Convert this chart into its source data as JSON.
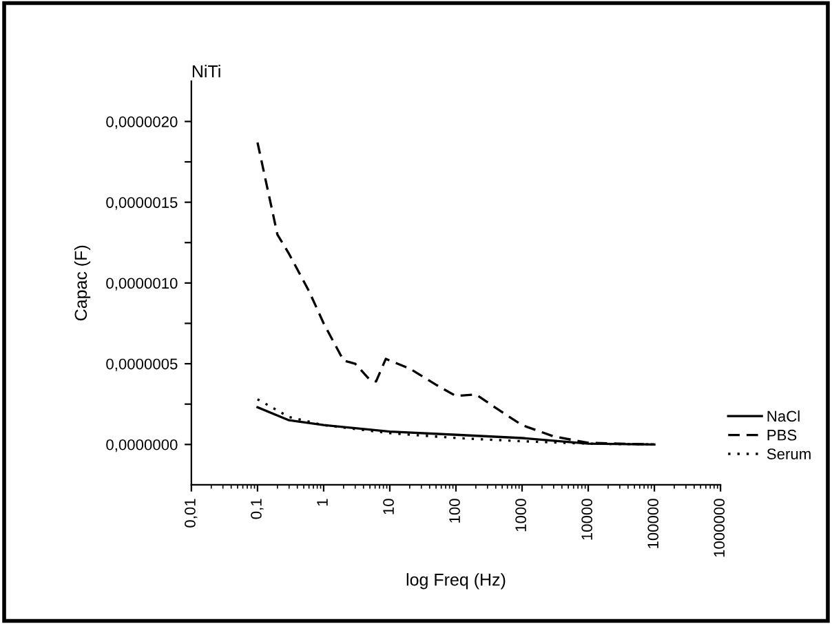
{
  "chart_data": {
    "type": "line",
    "title": "NiTi",
    "xlabel": "log Freq (Hz)",
    "ylabel": "Capac (F)",
    "log": "x",
    "xlim": [
      0.01,
      1000000
    ],
    "xticks": [
      {
        "value": 0.01,
        "label": "0,01"
      },
      {
        "value": 0.1,
        "label": "0,1"
      },
      1,
      10,
      100,
      1000,
      10000,
      100000,
      1000000
    ],
    "ylim": [
      -2.5e-07,
      2.25e-06
    ],
    "yticks": [
      {
        "value": 0,
        "label": "0,0000000"
      },
      {
        "value": 2.5e-07,
        "label": null
      },
      {
        "value": 5e-07,
        "label": "0,0000005"
      },
      {
        "value": 7.5e-07,
        "label": null
      },
      {
        "value": 1e-06,
        "label": "0,0000010"
      },
      {
        "value": 1.25e-06,
        "label": null
      },
      {
        "value": 1.5e-06,
        "label": "0,0000015"
      },
      {
        "value": 1.75e-06,
        "label": null
      },
      {
        "value": 2e-06,
        "label": "0,0000020"
      }
    ],
    "grid": false,
    "legend": "right",
    "marker": "none",
    "series": [
      {
        "name": "NaCl",
        "color": "#000000",
        "line_style": "solid",
        "x": [
          0.1,
          0.3,
          1,
          10,
          100,
          1000,
          10000,
          100000
        ],
        "values": [
          2.3e-07,
          1.5e-07,
          1.2e-07,
          8e-08,
          6e-08,
          4e-08,
          5e-09,
          0
        ]
      },
      {
        "name": "PBS",
        "color": "#000000",
        "line_style": "dashed",
        "x": [
          0.1,
          0.2,
          0.3,
          0.6,
          1,
          2,
          3,
          5,
          6.2,
          8.7,
          20,
          50,
          100,
          200,
          500,
          1000,
          3000,
          10000,
          100000
        ],
        "values": [
          1.87e-06,
          1.3e-06,
          1.18e-06,
          9.5e-07,
          7.5e-07,
          5.2e-07,
          5e-07,
          4e-07,
          3.9e-07,
          5.3e-07,
          4.7e-07,
          3.7e-07,
          3e-07,
          3.1e-07,
          2e-07,
          1.2e-07,
          5e-08,
          1e-08,
          0
        ]
      },
      {
        "name": "Serum",
        "color": "#000000",
        "line_style": "dotted",
        "x": [
          0.1,
          0.3,
          1,
          10,
          100,
          1000,
          10000,
          100000
        ],
        "values": [
          2.8e-07,
          1.7e-07,
          1.2e-07,
          7e-08,
          4e-08,
          2e-08,
          5e-09,
          0
        ]
      }
    ]
  }
}
